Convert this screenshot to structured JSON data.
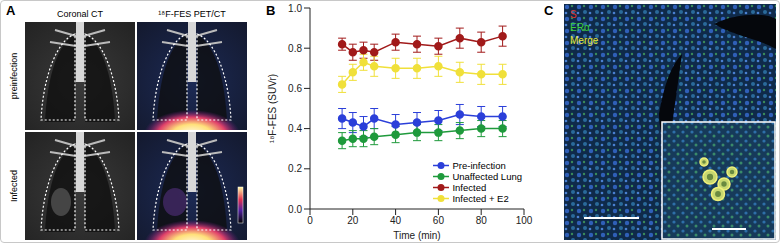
{
  "panels": {
    "A": {
      "label": "A",
      "columns": [
        "Coronal CT",
        "¹⁸F-FES PET/CT"
      ],
      "rows": [
        "preinfection",
        "Infected"
      ]
    },
    "B": {
      "label": "B"
    },
    "C": {
      "label": "C",
      "channels": [
        {
          "name": "S",
          "color": "#e0302a"
        },
        {
          "name": "ERα",
          "color": "#3ccf3c"
        },
        {
          "name": "Merge",
          "color": "#e8e83a"
        }
      ]
    }
  },
  "chart_data": {
    "type": "line",
    "xlabel": "Time (min)",
    "ylabel": "¹⁸F-FES (SUVr)",
    "x": [
      15,
      20,
      25,
      30,
      40,
      50,
      60,
      70,
      80,
      90
    ],
    "series": [
      {
        "name": "Pre-infection",
        "color": "#2b3fd9",
        "values": [
          0.45,
          0.43,
          0.41,
          0.45,
          0.42,
          0.43,
          0.44,
          0.47,
          0.46,
          0.46
        ],
        "errors": [
          0.05,
          0.05,
          0.05,
          0.05,
          0.05,
          0.05,
          0.05,
          0.05,
          0.05,
          0.05
        ]
      },
      {
        "name": "Unaffected Lung",
        "color": "#1f9a3c",
        "values": [
          0.34,
          0.35,
          0.35,
          0.36,
          0.37,
          0.38,
          0.38,
          0.39,
          0.4,
          0.4
        ],
        "errors": [
          0.04,
          0.04,
          0.04,
          0.04,
          0.04,
          0.04,
          0.04,
          0.04,
          0.04,
          0.04
        ]
      },
      {
        "name": "Infected",
        "color": "#a11a1a",
        "values": [
          0.82,
          0.78,
          0.79,
          0.78,
          0.83,
          0.82,
          0.81,
          0.85,
          0.83,
          0.86
        ],
        "errors": [
          0.03,
          0.04,
          0.04,
          0.04,
          0.04,
          0.04,
          0.04,
          0.05,
          0.05,
          0.05
        ]
      },
      {
        "name": "Infected + E2",
        "color": "#f0e03a",
        "values": [
          0.62,
          0.68,
          0.73,
          0.71,
          0.7,
          0.7,
          0.71,
          0.68,
          0.67,
          0.67
        ],
        "errors": [
          0.04,
          0.04,
          0.04,
          0.05,
          0.05,
          0.05,
          0.05,
          0.05,
          0.05,
          0.05
        ]
      }
    ],
    "marker": "circle",
    "xlim": [
      0,
      100
    ],
    "xticks": [
      0,
      20,
      40,
      60,
      80,
      100
    ],
    "ylim": [
      0,
      1
    ],
    "yticks": [
      {
        "value": 0,
        "label": "0.0"
      },
      {
        "value": 0.2,
        "label": "0.2"
      },
      {
        "value": 0.4,
        "label": "0.4"
      },
      {
        "value": 0.6,
        "label": "0.6"
      },
      {
        "value": 0.8,
        "label": "0.8"
      },
      {
        "value": 1,
        "label": "1.0"
      }
    ],
    "grid": false,
    "legend": "lower right"
  }
}
